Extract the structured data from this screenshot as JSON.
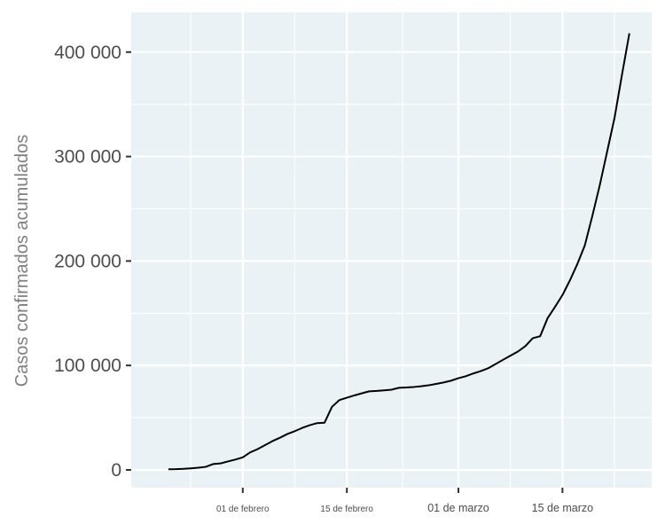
{
  "chart_data": {
    "type": "line",
    "title": "",
    "xlabel": "",
    "ylabel": "Casos confirmados acumulados",
    "grid": true,
    "background_color": "#eaf2f5",
    "line_color": "#000000",
    "ylim": [
      -17000,
      438000
    ],
    "xlim": [
      "2020-01-17",
      "2020-03-27"
    ],
    "y_ticks": [
      {
        "value": 0,
        "label": "0"
      },
      {
        "value": 100000,
        "label": "100 000"
      },
      {
        "value": 200000,
        "label": "200 000"
      },
      {
        "value": 300000,
        "label": "300 000"
      },
      {
        "value": 400000,
        "label": "400 000"
      }
    ],
    "x_ticks": [
      {
        "date": "2020-02-01",
        "label": "01 de febrero"
      },
      {
        "date": "2020-02-15",
        "label": "15 de febrero"
      },
      {
        "date": "2020-03-01",
        "label": "01 de marzo"
      },
      {
        "date": "2020-03-15",
        "label": "15 de marzo"
      }
    ],
    "series": [
      {
        "x": [
          "2020-01-22",
          "2020-01-23",
          "2020-01-24",
          "2020-01-25",
          "2020-01-26",
          "2020-01-27",
          "2020-01-28",
          "2020-01-29",
          "2020-01-30",
          "2020-01-31",
          "2020-02-01",
          "2020-02-02",
          "2020-02-03",
          "2020-02-04",
          "2020-02-05",
          "2020-02-06",
          "2020-02-07",
          "2020-02-08",
          "2020-02-09",
          "2020-02-10",
          "2020-02-11",
          "2020-02-12",
          "2020-02-13",
          "2020-02-14",
          "2020-02-15",
          "2020-02-16",
          "2020-02-17",
          "2020-02-18",
          "2020-02-19",
          "2020-02-20",
          "2020-02-21",
          "2020-02-22",
          "2020-02-23",
          "2020-02-24",
          "2020-02-25",
          "2020-02-26",
          "2020-02-27",
          "2020-02-28",
          "2020-02-29",
          "2020-03-01",
          "2020-03-02",
          "2020-03-03",
          "2020-03-04",
          "2020-03-05",
          "2020-03-06",
          "2020-03-07",
          "2020-03-08",
          "2020-03-09",
          "2020-03-10",
          "2020-03-11",
          "2020-03-12",
          "2020-03-13",
          "2020-03-14",
          "2020-03-15",
          "2020-03-16",
          "2020-03-17",
          "2020-03-18",
          "2020-03-19",
          "2020-03-20",
          "2020-03-21",
          "2020-03-22",
          "2020-03-23",
          "2020-03-24"
        ],
        "y": [
          600,
          700,
          1000,
          1500,
          2100,
          2900,
          5600,
          6200,
          8100,
          9900,
          12000,
          16800,
          19900,
          23800,
          27600,
          30800,
          34400,
          37100,
          40200,
          42800,
          44800,
          45200,
          60400,
          66900,
          69100,
          71300,
          73300,
          75200,
          75600,
          76200,
          76800,
          78600,
          78900,
          79400,
          80100,
          81000,
          82300,
          83700,
          85400,
          87800,
          89700,
          92300,
          94600,
          97300,
          101300,
          105400,
          109400,
          113300,
          118500,
          126100,
          128000,
          145300,
          156100,
          167400,
          181500,
          197100,
          214900,
          242700,
          272100,
          304500,
          337000,
          378200,
          418000
        ]
      }
    ]
  }
}
